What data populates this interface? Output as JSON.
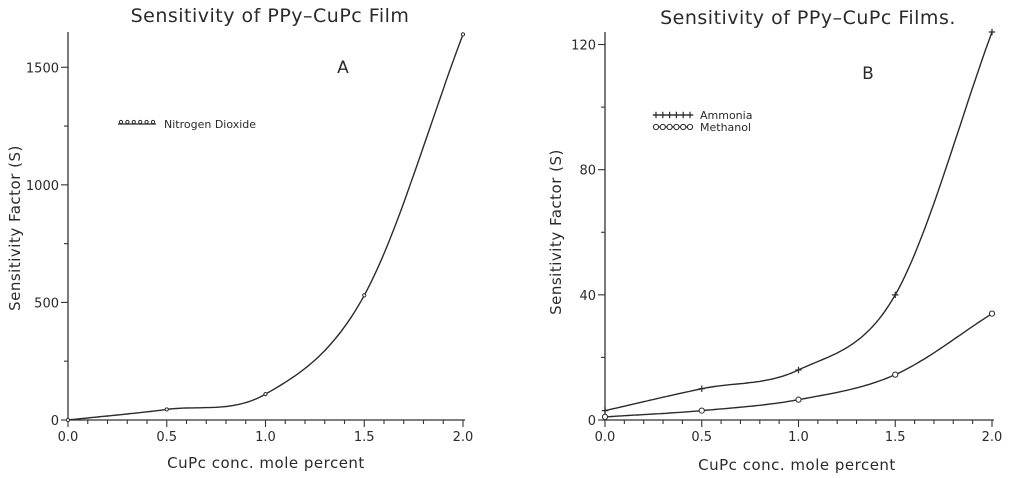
{
  "colors": {
    "ink": "#2b2b2b",
    "background": "#ffffff"
  },
  "chart_data": [
    {
      "type": "line",
      "panel_letter": "A",
      "title": "Sensitivity of PPy–CuPc Film",
      "xlabel": "CuPc  conc.  mole  percent",
      "ylabel": "Sensitivity  Factor  (S)",
      "xlim": [
        0.0,
        2.0
      ],
      "ylim": [
        0,
        1650
      ],
      "xticks": [
        0.0,
        0.5,
        1.0,
        1.5,
        2.0
      ],
      "xtick_labels": [
        "0.0",
        "0.5",
        "1.0",
        "1.5",
        "2.0"
      ],
      "yticks": [
        0,
        500,
        1000,
        1500
      ],
      "ytick_labels": [
        "0",
        "500",
        "1000",
        "1500"
      ],
      "legend_position": "top-left",
      "series": [
        {
          "name": "Nitrogen Dioxide",
          "marker": "dot",
          "x": [
            0.0,
            0.5,
            1.0,
            1.5,
            2.0
          ],
          "y": [
            0,
            45,
            110,
            530,
            1640
          ]
        }
      ]
    },
    {
      "type": "line",
      "panel_letter": "B",
      "title": "Sensitivity of PPy–CuPc Films.",
      "xlabel": "CuPc  conc.  mole  percent",
      "ylabel": "Sensitivity  Factor  (S)",
      "xlim": [
        0.0,
        2.0
      ],
      "ylim": [
        0,
        124
      ],
      "xticks": [
        0.0,
        0.5,
        1.0,
        1.5,
        2.0
      ],
      "xtick_labels": [
        "0.0",
        "0.5",
        "1.0",
        "1.5",
        "2.0"
      ],
      "yticks": [
        0,
        40,
        80,
        120
      ],
      "ytick_labels": [
        "0",
        "40",
        "80",
        "120"
      ],
      "legend_position": "top-left",
      "series": [
        {
          "name": "Ammonia",
          "marker": "plus",
          "x": [
            0.0,
            0.5,
            1.0,
            1.5,
            2.0
          ],
          "y": [
            3,
            10,
            16,
            40,
            124
          ]
        },
        {
          "name": "Methanol",
          "marker": "circle",
          "x": [
            0.0,
            0.5,
            1.0,
            1.5,
            2.0
          ],
          "y": [
            1,
            3,
            6.5,
            14.5,
            34
          ]
        }
      ]
    }
  ]
}
